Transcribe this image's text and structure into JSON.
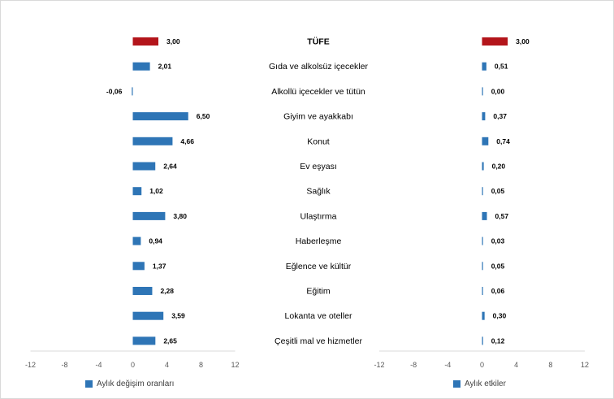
{
  "chart_data": [
    {
      "type": "bar",
      "orientation": "horizontal",
      "categories": [
        "TÜFE",
        "Gıda ve alkolsüz içecekler",
        "Alkollü içecekler ve tütün",
        "Giyim ve ayakkabı",
        "Konut",
        "Ev eşyası",
        "Sağlık",
        "Ulaştırma",
        "Haberleşme",
        "Eğlence ve kültür",
        "Eğitim",
        "Lokanta ve oteller",
        "Çeşitli mal ve hizmetler"
      ],
      "values": [
        3.0,
        2.01,
        -0.06,
        6.5,
        4.66,
        2.64,
        1.02,
        3.8,
        0.94,
        1.37,
        2.28,
        3.59,
        2.65
      ],
      "value_labels": [
        "3,00",
        "2,01",
        "-0,06",
        "6,50",
        "4,66",
        "2,64",
        "1,02",
        "3,80",
        "0,94",
        "1,37",
        "2,28",
        "3,59",
        "2,65"
      ],
      "series_name": "Aylık değişim oranları",
      "xlim": [
        -12,
        12
      ],
      "xticks": [
        -12,
        -8,
        -4,
        0,
        4,
        8,
        12
      ],
      "xtick_labels": [
        "-12",
        "-8",
        "-4",
        "0",
        "4",
        "8",
        "12"
      ],
      "grid": false,
      "legend": "bottom-left",
      "highlight_index": 0
    },
    {
      "type": "bar",
      "orientation": "horizontal",
      "categories": [
        "TÜFE",
        "Gıda ve alkolsüz içecekler",
        "Alkollü içecekler ve tütün",
        "Giyim ve ayakkabı",
        "Konut",
        "Ev eşyası",
        "Sağlık",
        "Ulaştırma",
        "Haberleşme",
        "Eğlence ve kültür",
        "Eğitim",
        "Lokanta ve oteller",
        "Çeşitli mal ve hizmetler"
      ],
      "values": [
        3.0,
        0.51,
        0.0,
        0.37,
        0.74,
        0.2,
        0.05,
        0.57,
        0.03,
        0.05,
        0.06,
        0.3,
        0.12
      ],
      "value_labels": [
        "3,00",
        "0,51",
        "0,00",
        "0,37",
        "0,74",
        "0,20",
        "0,05",
        "0,57",
        "0,03",
        "0,05",
        "0,06",
        "0,30",
        "0,12"
      ],
      "series_name": "Aylık etkiler",
      "xlim": [
        -12,
        12
      ],
      "xticks": [
        -12,
        -8,
        -4,
        0,
        4,
        8,
        12
      ],
      "xtick_labels": [
        "-12",
        "-8",
        "-4",
        "0",
        "4",
        "8",
        "12"
      ],
      "grid": false,
      "legend": "bottom-left",
      "highlight_index": 0
    }
  ],
  "colors": {
    "bar": "#2e75b6",
    "highlight": "#b3151b",
    "axis": "#d9d9d9"
  },
  "legend": {
    "left_label": "Aylık değişim oranları",
    "right_label": "Aylık etkiler"
  }
}
